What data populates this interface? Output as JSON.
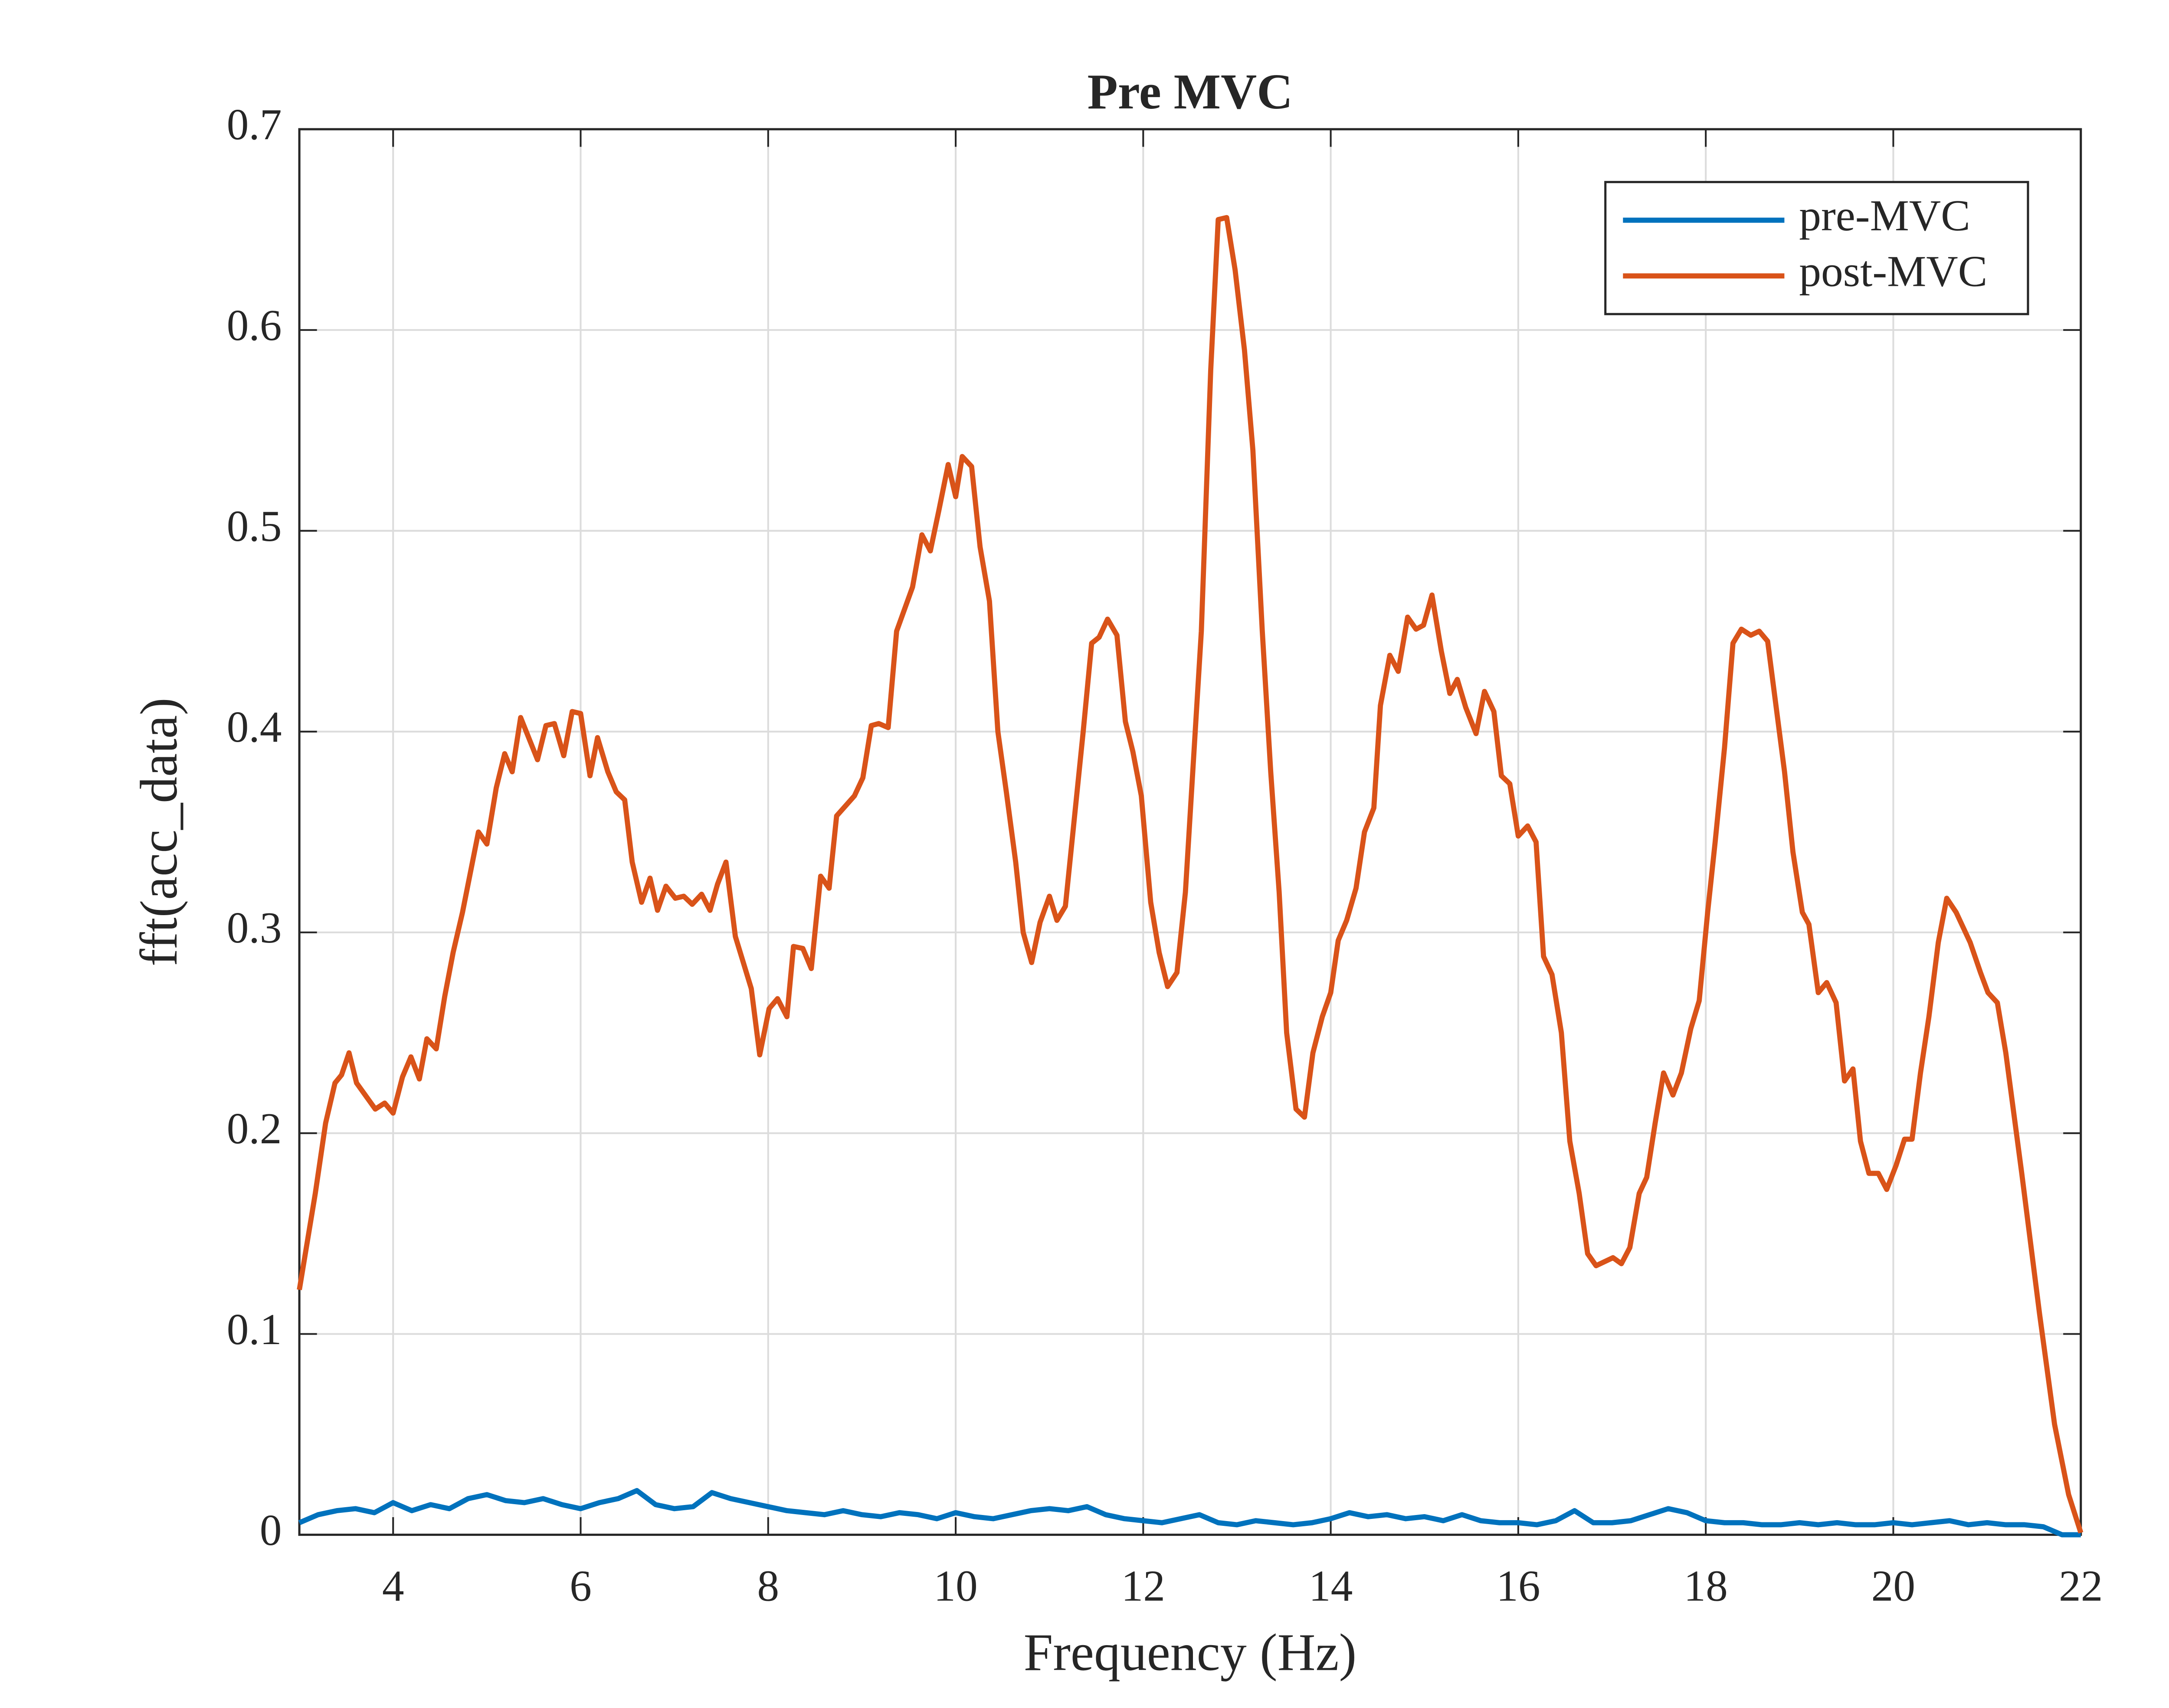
{
  "chart_data": {
    "type": "line",
    "title": "Pre MVC",
    "xlabel": "Frequency (Hz)",
    "ylabel": "fft(acc_data)",
    "xlim": [
      3,
      22
    ],
    "ylim": [
      0,
      0.7
    ],
    "xticks": [
      4,
      6,
      8,
      10,
      12,
      14,
      16,
      18,
      20,
      22
    ],
    "yticks": [
      0,
      0.1,
      0.2,
      0.3,
      0.4,
      0.5,
      0.6,
      0.7
    ],
    "grid": true,
    "legend": "upper right",
    "series": [
      {
        "name": "pre-MVC",
        "color": "#0072BD",
        "x": [
          3.0,
          3.2,
          3.4,
          3.6,
          3.8,
          4.0,
          4.2,
          4.4,
          4.6,
          4.8,
          5.0,
          5.2,
          5.4,
          5.6,
          5.8,
          6.0,
          6.2,
          6.4,
          6.6,
          6.8,
          7.0,
          7.2,
          7.4,
          7.6,
          7.8,
          8.0,
          8.2,
          8.4,
          8.6,
          8.8,
          9.0,
          9.2,
          9.4,
          9.6,
          9.8,
          10.0,
          10.2,
          10.4,
          10.6,
          10.8,
          11.0,
          11.2,
          11.4,
          11.6,
          11.8,
          12.0,
          12.2,
          12.4,
          12.6,
          12.8,
          13.0,
          13.2,
          13.4,
          13.6,
          13.8,
          14.0,
          14.2,
          14.4,
          14.6,
          14.8,
          15.0,
          15.2,
          15.4,
          15.6,
          15.8,
          16.0,
          16.2,
          16.4,
          16.6,
          16.8,
          17.0,
          17.2,
          17.4,
          17.6,
          17.8,
          18.0,
          18.2,
          18.4,
          18.6,
          18.8,
          19.0,
          19.2,
          19.4,
          19.6,
          19.8,
          20.0,
          20.2,
          20.4,
          20.6,
          20.8,
          21.0,
          21.2,
          21.4,
          21.6,
          21.8,
          22.0
        ],
        "values": [
          0.006,
          0.01,
          0.012,
          0.013,
          0.011,
          0.016,
          0.012,
          0.015,
          0.013,
          0.018,
          0.02,
          0.017,
          0.016,
          0.018,
          0.015,
          0.013,
          0.016,
          0.018,
          0.022,
          0.015,
          0.013,
          0.014,
          0.021,
          0.018,
          0.016,
          0.014,
          0.012,
          0.011,
          0.01,
          0.012,
          0.01,
          0.009,
          0.011,
          0.01,
          0.008,
          0.011,
          0.009,
          0.008,
          0.01,
          0.012,
          0.013,
          0.012,
          0.014,
          0.01,
          0.008,
          0.007,
          0.006,
          0.008,
          0.01,
          0.006,
          0.005,
          0.007,
          0.006,
          0.005,
          0.006,
          0.008,
          0.011,
          0.009,
          0.01,
          0.008,
          0.009,
          0.007,
          0.01,
          0.007,
          0.006,
          0.006,
          0.005,
          0.007,
          0.012,
          0.006,
          0.006,
          0.007,
          0.01,
          0.013,
          0.011,
          0.007,
          0.006,
          0.006,
          0.005,
          0.005,
          0.006,
          0.005,
          0.006,
          0.005,
          0.005,
          0.006,
          0.005,
          0.006,
          0.007,
          0.005,
          0.006,
          0.005,
          0.005,
          0.004,
          0,
          0
        ]
      },
      {
        "name": "post-MVC",
        "color": "#D95319",
        "x": [
          3.0,
          3.17,
          3.28,
          3.38,
          3.45,
          3.53,
          3.61,
          3.81,
          3.91,
          4.0,
          4.1,
          4.19,
          4.28,
          4.36,
          4.46,
          4.55,
          4.64,
          4.74,
          4.91,
          5.0,
          5.1,
          5.19,
          5.27,
          5.36,
          5.54,
          5.63,
          5.72,
          5.82,
          5.91,
          6.0,
          6.1,
          6.18,
          6.29,
          6.38,
          6.47,
          6.55,
          6.65,
          6.74,
          6.82,
          6.91,
          7.01,
          7.1,
          7.19,
          7.29,
          7.38,
          7.46,
          7.55,
          7.65,
          7.82,
          7.91,
          8.01,
          8.1,
          8.2,
          8.27,
          8.37,
          8.46,
          8.56,
          8.65,
          8.73,
          8.92,
          9.01,
          9.1,
          9.18,
          9.28,
          9.37,
          9.54,
          9.64,
          9.73,
          9.82,
          9.92,
          10.0,
          10.07,
          10.17,
          10.26,
          10.36,
          10.45,
          10.54,
          10.64,
          10.72,
          10.81,
          10.9,
          11.0,
          11.08,
          11.17,
          11.36,
          11.45,
          11.53,
          11.62,
          11.72,
          11.81,
          11.89,
          11.98,
          12.08,
          12.17,
          12.26,
          12.36,
          12.45,
          12.62,
          12.72,
          12.8,
          12.89,
          12.98,
          13.08,
          13.17,
          13.27,
          13.36,
          13.45,
          13.53,
          13.63,
          13.72,
          13.81,
          13.91,
          14.0,
          14.08,
          14.17,
          14.27,
          14.36,
          14.46,
          14.53,
          14.63,
          14.72,
          14.82,
          14.91,
          14.99,
          15.08,
          15.18,
          15.27,
          15.35,
          15.44,
          15.55,
          15.64,
          15.74,
          15.82,
          15.91,
          16.0,
          16.1,
          16.19,
          16.27,
          16.36,
          16.46,
          16.55,
          16.65,
          16.74,
          16.83,
          17.01,
          17.1,
          17.19,
          17.29,
          17.37,
          17.46,
          17.55,
          17.65,
          17.74,
          17.84,
          17.93,
          18.02,
          18.1,
          18.2,
          18.29,
          18.38,
          18.48,
          18.57,
          18.66,
          18.84,
          18.93,
          19.03,
          19.1,
          19.2,
          19.29,
          19.39,
          19.48,
          19.57,
          19.65,
          19.74,
          19.84,
          19.93,
          20.03,
          20.12,
          20.2,
          20.29,
          20.38,
          20.48,
          20.57,
          20.67,
          20.82,
          20.93,
          21.01,
          21.11,
          21.2,
          21.37,
          21.56,
          21.72,
          21.87,
          22.0
        ],
        "values": [
          0.122,
          0.17,
          0.205,
          0.225,
          0.229,
          0.24,
          0.225,
          0.212,
          0.215,
          0.21,
          0.228,
          0.238,
          0.227,
          0.247,
          0.242,
          0.268,
          0.29,
          0.31,
          0.35,
          0.344,
          0.372,
          0.389,
          0.38,
          0.407,
          0.386,
          0.403,
          0.404,
          0.388,
          0.41,
          0.409,
          0.378,
          0.397,
          0.38,
          0.37,
          0.366,
          0.335,
          0.315,
          0.327,
          0.311,
          0.323,
          0.317,
          0.318,
          0.314,
          0.319,
          0.311,
          0.324,
          0.335,
          0.298,
          0.272,
          0.239,
          0.262,
          0.267,
          0.258,
          0.293,
          0.292,
          0.282,
          0.328,
          0.322,
          0.358,
          0.368,
          0.377,
          0.403,
          0.404,
          0.402,
          0.45,
          0.472,
          0.498,
          0.49,
          0.51,
          0.533,
          0.517,
          0.537,
          0.532,
          0.492,
          0.465,
          0.4,
          0.37,
          0.335,
          0.3,
          0.285,
          0.305,
          0.318,
          0.306,
          0.313,
          0.4,
          0.444,
          0.447,
          0.456,
          0.448,
          0.405,
          0.39,
          0.368,
          0.315,
          0.29,
          0.273,
          0.28,
          0.32,
          0.45,
          0.58,
          0.655,
          0.656,
          0.63,
          0.59,
          0.54,
          0.45,
          0.38,
          0.32,
          0.25,
          0.212,
          0.208,
          0.24,
          0.258,
          0.27,
          0.296,
          0.306,
          0.322,
          0.35,
          0.362,
          0.413,
          0.438,
          0.43,
          0.457,
          0.451,
          0.453,
          0.468,
          0.44,
          0.419,
          0.426,
          0.412,
          0.399,
          0.42,
          0.41,
          0.378,
          0.374,
          0.348,
          0.353,
          0.345,
          0.288,
          0.279,
          0.25,
          0.196,
          0.17,
          0.14,
          0.134,
          0.138,
          0.135,
          0.143,
          0.17,
          0.178,
          0.205,
          0.23,
          0.219,
          0.23,
          0.252,
          0.266,
          0.31,
          0.345,
          0.392,
          0.444,
          0.451,
          0.448,
          0.45,
          0.445,
          0.38,
          0.34,
          0.31,
          0.304,
          0.27,
          0.275,
          0.265,
          0.226,
          0.232,
          0.196,
          0.18,
          0.18,
          0.172,
          0.184,
          0.197,
          0.197,
          0.23,
          0.258,
          0.295,
          0.317,
          0.31,
          0.295,
          0.28,
          0.27,
          0.265,
          0.24,
          0.18,
          0.11,
          0.055,
          0.02,
          0.001
        ]
      }
    ]
  }
}
